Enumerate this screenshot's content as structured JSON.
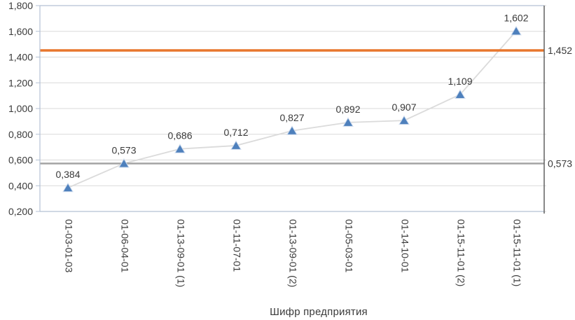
{
  "chart_data": {
    "type": "line",
    "title": "",
    "xlabel": "Шифр предприятия",
    "ylabel": "",
    "categories": [
      "01-03-01-03",
      "01-06-04-01",
      "01-13-09-01 (1)",
      "01-11-07-01",
      "01-13-09-01 (2)",
      "01-05-03-01",
      "01-14-10-01",
      "01-15-11-01 (2)",
      "01-15-11-01 (1)"
    ],
    "series": [
      {
        "name": "enterprise-values",
        "values": [
          0.384,
          0.573,
          0.686,
          0.712,
          0.827,
          0.892,
          0.907,
          1.109,
          1.602
        ],
        "labels": [
          "0,384",
          "0,573",
          "0,686",
          "0,712",
          "0,827",
          "0,892",
          "0,907",
          "1,109",
          "1,602"
        ]
      }
    ],
    "reference_lines": [
      {
        "value": 1.452,
        "label": "1,452",
        "color": "#E8762D",
        "width": 3.5
      },
      {
        "value": 0.573,
        "label": "0,573",
        "color": "#A3A3A3",
        "width": 2.5
      }
    ],
    "ylim": [
      0.2,
      1.8
    ],
    "ytick_step": 0.2,
    "ytick_labels": [
      "0,200",
      "0,400",
      "0,600",
      "0,800",
      "1,000",
      "1,200",
      "1,400",
      "1,600",
      "1,800"
    ],
    "legend": "none",
    "grid": true,
    "marker": "triangle",
    "colors": {
      "marker": "#4E80BC",
      "marker_outline": "#CFDCEE",
      "series_line": "#DBDBDB",
      "gridline": "#D9D9D9",
      "axis": "#B4C1D4",
      "right_border": "#606060",
      "text": "#3A3A3A"
    }
  }
}
